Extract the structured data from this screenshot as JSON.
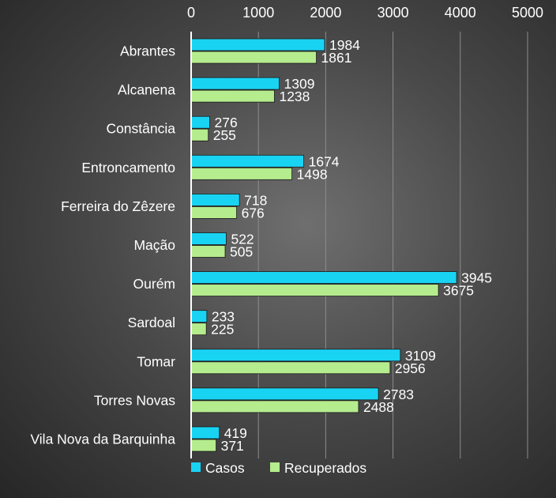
{
  "chart_data": {
    "type": "bar",
    "orientation": "horizontal",
    "title": "",
    "xlabel": "",
    "ylabel": "",
    "xlim": [
      0,
      5000
    ],
    "xticks": [
      "0",
      "1000",
      "2000",
      "3000",
      "4000",
      "5000"
    ],
    "grid": true,
    "legend": "bottom-left",
    "categories": [
      "Abrantes",
      "Alcanena",
      "Constância",
      "Entroncamento",
      "Ferreira do Zêzere",
      "Mação",
      "Ourém",
      "Sardoal",
      "Tomar",
      "Torres Novas",
      "Vila Nova da Barquinha"
    ],
    "series": [
      {
        "name": "Casos",
        "color": "#19d3f3",
        "values": [
          1984,
          1309,
          276,
          1674,
          718,
          522,
          3945,
          233,
          3109,
          2783,
          419
        ]
      },
      {
        "name": "Recuperados",
        "color": "#b5ec8e",
        "values": [
          1861,
          1238,
          255,
          1498,
          676,
          505,
          3675,
          225,
          2956,
          2488,
          371
        ]
      }
    ]
  }
}
